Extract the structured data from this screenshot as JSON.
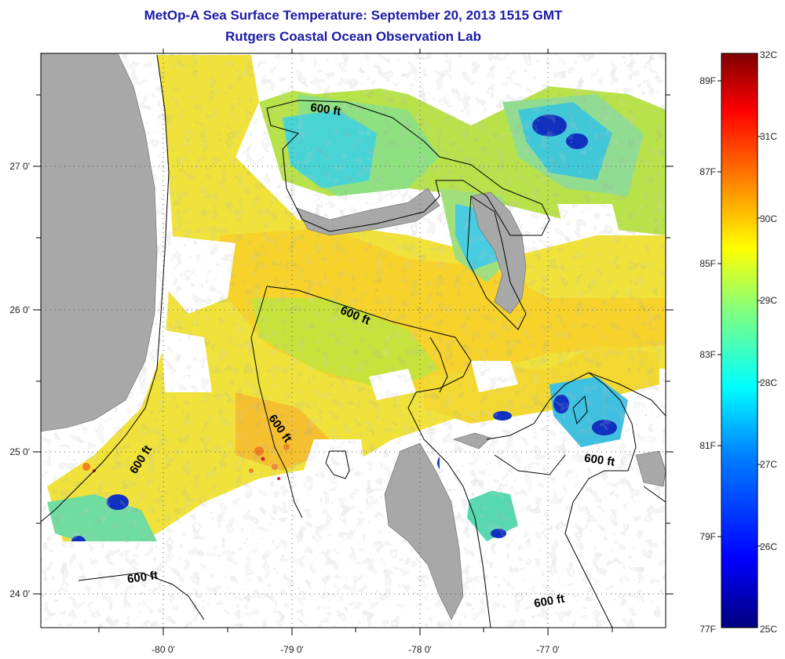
{
  "title": "MetOp-A Sea Surface Temperature:  September 20, 2013 1515 GMT",
  "subtitle": "Rutgers Coastal Ocean Observation Lab",
  "map": {
    "lon_labels": [
      "-80 0'",
      "-79 0'",
      "-78 0'",
      "-77 0'"
    ],
    "lat_labels": [
      "27 0'",
      "26 0'",
      "25 0'",
      "24 0'"
    ],
    "contour_labels": [
      "600 ft",
      "600 ft",
      "600 ft",
      "600 ft",
      "600 ft",
      "600 ft",
      "600 ft"
    ]
  },
  "colorbar": {
    "celsius_labels": [
      "32C",
      "31C",
      "30C",
      "29C",
      "28C",
      "27C",
      "26C",
      "25C"
    ],
    "fahrenheit_labels": [
      "89F",
      "87F",
      "85F",
      "83F",
      "81F",
      "79F",
      "77F"
    ],
    "colors": [
      "#00007f",
      "#0000ff",
      "#0080ff",
      "#00ffff",
      "#80ff80",
      "#ffff00",
      "#ff8000",
      "#ff0000",
      "#7f0000"
    ]
  },
  "colors": {
    "land": "#a8a8a8",
    "title": "#1a1aa6",
    "sst_warm": "#f5e020",
    "sst_mid": "#c8e838",
    "sst_cool": "#50d8d8"
  }
}
